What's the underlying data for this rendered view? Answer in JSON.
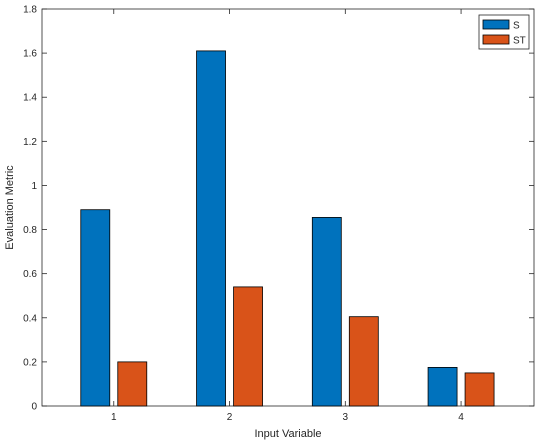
{
  "chart_data": {
    "type": "bar",
    "categories": [
      "1",
      "2",
      "3",
      "4"
    ],
    "series": [
      {
        "name": "S",
        "values": [
          0.89,
          1.61,
          0.855,
          0.175
        ],
        "color": "#0072BD"
      },
      {
        "name": "ST",
        "values": [
          0.2,
          0.54,
          0.405,
          0.15
        ],
        "color": "#D95319"
      }
    ],
    "title": "",
    "xlabel": "Input Variable",
    "ylabel": "Evaluation Metric",
    "ylim": [
      0,
      1.8
    ],
    "yticks": [
      "0",
      "0.2",
      "0.4",
      "0.6",
      "0.8",
      "1",
      "1.2",
      "1.4",
      "1.6",
      "1.8"
    ],
    "grid": false,
    "legend_position": "top-right"
  }
}
